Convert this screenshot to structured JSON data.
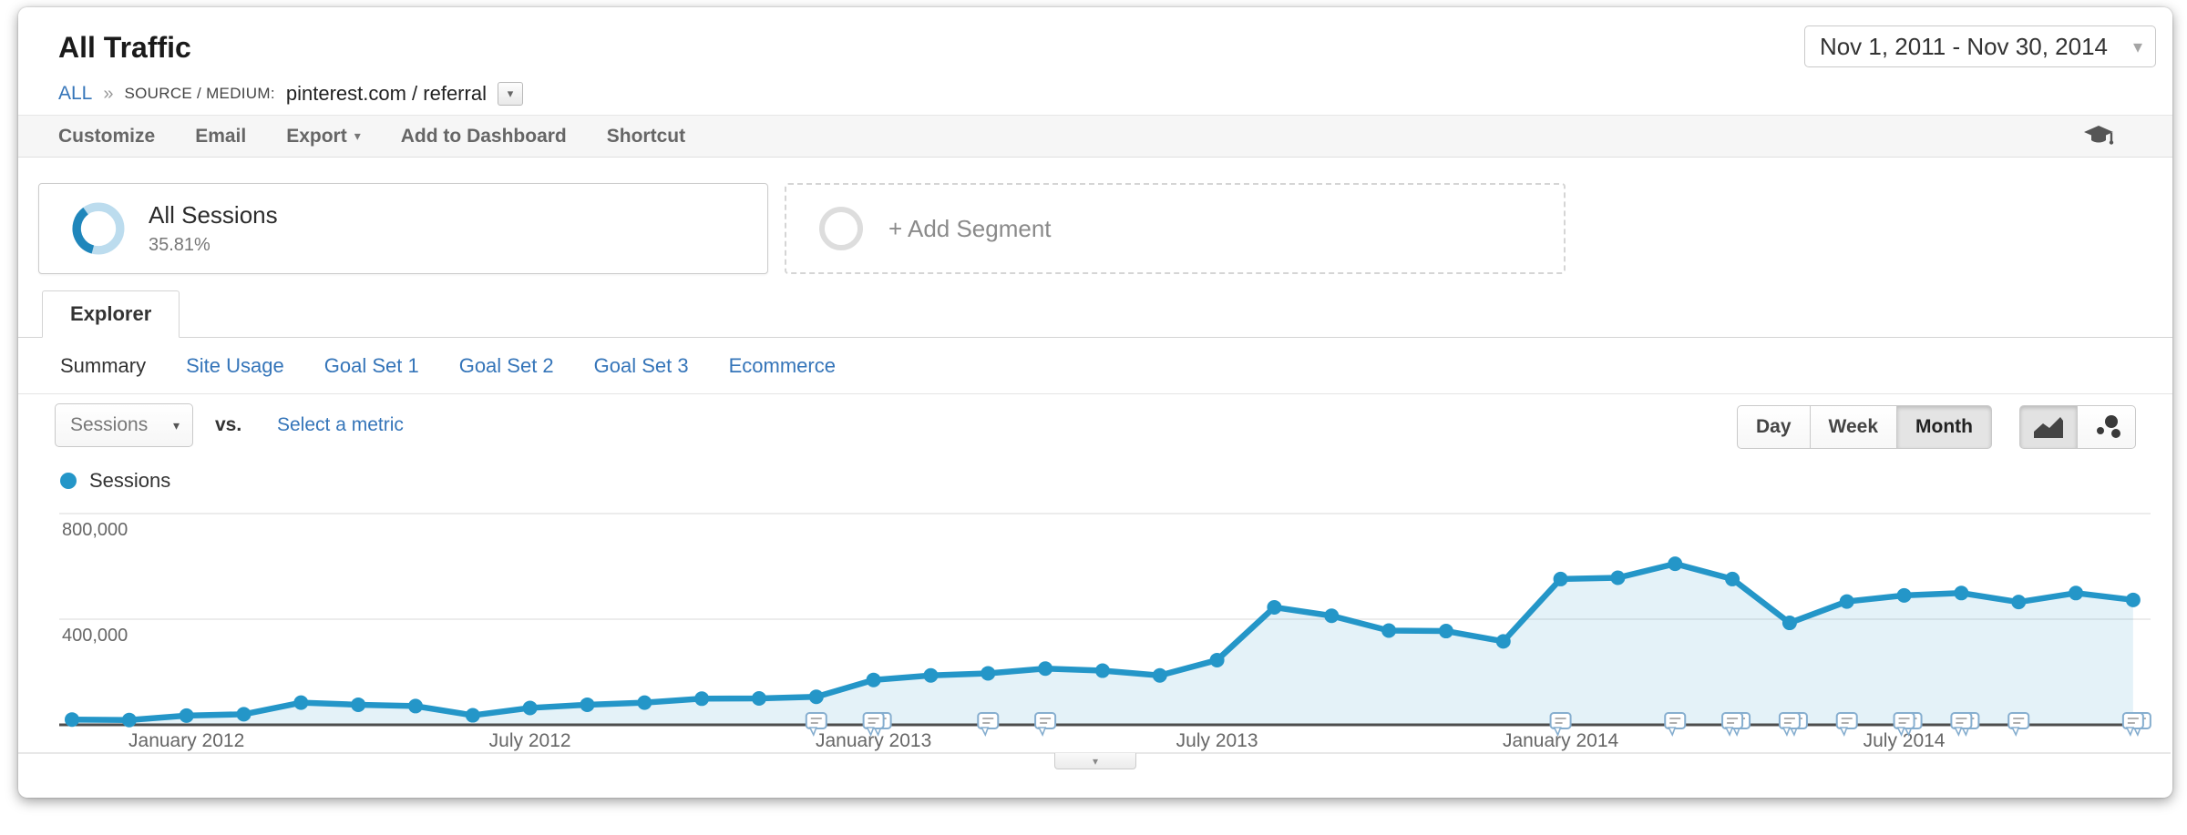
{
  "theme": {
    "link_blue": "#3575b9",
    "series_blue": "#2496c8",
    "area_fill": "rgba(36,150,200,0.12)",
    "donut_dark": "#1f86bb",
    "donut_light": "#bcdcee",
    "toolbar_text": "#666666"
  },
  "icons": {
    "caret_down": "▾"
  },
  "header": {
    "title": "All Traffic",
    "breadcrumb": {
      "all_link": "ALL",
      "separator": "»",
      "dimension_label": "SOURCE / MEDIUM:",
      "dimension_value": "pinterest.com / referral"
    },
    "date_range": "Nov 1, 2011 - Nov 30, 2014"
  },
  "toolbar": {
    "items": [
      "Customize",
      "Email",
      "Export",
      "Add to Dashboard",
      "Shortcut"
    ]
  },
  "segments": {
    "all_sessions": {
      "label": "All Sessions",
      "percent": "35.81%"
    },
    "add_segment_label": "+ Add Segment"
  },
  "tabs": {
    "explorer": "Explorer",
    "subnav": [
      "Summary",
      "Site Usage",
      "Goal Set 1",
      "Goal Set 2",
      "Goal Set 3",
      "Ecommerce"
    ]
  },
  "controls": {
    "metric_selector": "Sessions",
    "vs_label": "vs.",
    "select_metric_link": "Select a metric",
    "granularity": [
      "Day",
      "Week",
      "Month"
    ],
    "granularity_active": "Month"
  },
  "legend": {
    "series_label": "Sessions"
  },
  "chart_data": {
    "type": "line",
    "title": "Sessions by month",
    "series_name": "Sessions",
    "categories": [
      "Nov 2011",
      "Dec 2011",
      "Jan 2012",
      "Feb 2012",
      "Mar 2012",
      "Apr 2012",
      "May 2012",
      "Jun 2012",
      "Jul 2012",
      "Aug 2012",
      "Sep 2012",
      "Oct 2012",
      "Nov 2012",
      "Dec 2012",
      "Jan 2013",
      "Feb 2013",
      "Mar 2013",
      "Apr 2013",
      "May 2013",
      "Jun 2013",
      "Jul 2013",
      "Aug 2013",
      "Sep 2013",
      "Oct 2013",
      "Nov 2013",
      "Dec 2013",
      "Jan 2014",
      "Feb 2014",
      "Mar 2014",
      "Apr 2014",
      "May 2014",
      "Jun 2014",
      "Jul 2014",
      "Aug 2014",
      "Sep 2014",
      "Oct 2014",
      "Nov 2014"
    ],
    "values": [
      20000,
      18000,
      35000,
      40000,
      84000,
      76000,
      71000,
      36000,
      64000,
      76000,
      84000,
      99000,
      100000,
      106000,
      170000,
      187000,
      195000,
      213000,
      205000,
      187000,
      245000,
      445000,
      413000,
      357000,
      355000,
      316000,
      552000,
      557000,
      610000,
      552000,
      386000,
      467000,
      490000,
      499000,
      465000,
      499000,
      473000
    ],
    "ylim": [
      0,
      840000
    ],
    "yticks": [
      {
        "value": 400000,
        "label": "400,000"
      },
      {
        "value": 800000,
        "label": "800,000"
      }
    ],
    "xticks": [
      {
        "index": 2,
        "label": "January 2012"
      },
      {
        "index": 8,
        "label": "July 2012"
      },
      {
        "index": 14,
        "label": "January 2013"
      },
      {
        "index": 20,
        "label": "July 2013"
      },
      {
        "index": 26,
        "label": "January 2014"
      },
      {
        "index": 32,
        "label": "July 2014"
      }
    ],
    "annotations": [
      {
        "index": 13,
        "count": 1
      },
      {
        "index": 14,
        "count": 2
      },
      {
        "index": 16,
        "count": 1
      },
      {
        "index": 17,
        "count": 1
      },
      {
        "index": 26,
        "count": 1
      },
      {
        "index": 28,
        "count": 1
      },
      {
        "index": 29,
        "count": 2
      },
      {
        "index": 30,
        "count": 2
      },
      {
        "index": 31,
        "count": 1
      },
      {
        "index": 32,
        "count": 2
      },
      {
        "index": 33,
        "count": 2
      },
      {
        "index": 34,
        "count": 1
      },
      {
        "index": 36,
        "count": 2
      }
    ],
    "grid": true,
    "legend_position": "top-left",
    "colors": {
      "line": "#2496c8",
      "area": "rgba(36,150,200,0.12)",
      "grid": "#e6e6e6",
      "axis": "#4d4d4d",
      "tick_text": "#666666"
    }
  }
}
